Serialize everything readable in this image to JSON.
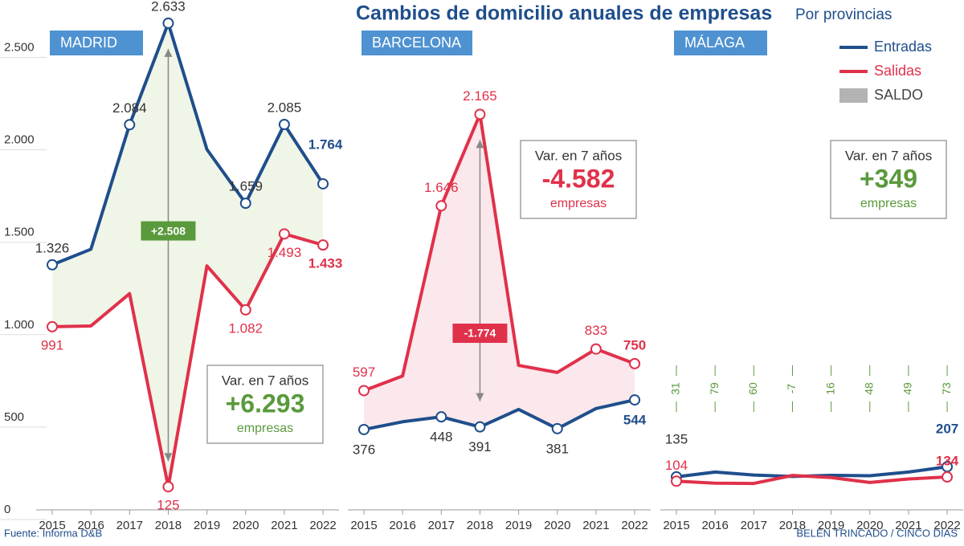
{
  "title": "Cambios de domicilio anuales de empresas",
  "subtitle": "Por provincias",
  "legend": [
    {
      "name": "Entradas",
      "color": "#1f4e8c"
    },
    {
      "name": "Salidas",
      "color": "#e0314b"
    },
    {
      "name": "SALDO",
      "color": "#b3b3b3"
    }
  ],
  "source": "Fuente: Informa D&B",
  "credit": "BELÉN TRINCADO / CINCO DÍAS",
  "chart_data": [
    {
      "type": "line",
      "panel": "MADRID",
      "categories": [
        "2015",
        "2016",
        "2017",
        "2018",
        "2019",
        "2020",
        "2021",
        "2022"
      ],
      "ylim": [
        0,
        2650
      ],
      "yticks": [
        0,
        500,
        {
          "value": 1000,
          "label": "1.000"
        },
        {
          "value": 1500,
          "label": "1.500"
        },
        {
          "value": 2000,
          "label": "2.000"
        },
        {
          "value": 2500,
          "label": "2.500"
        }
      ],
      "area_color": "#eef5e4",
      "series": [
        {
          "color": "#1f4e8c",
          "values": [
            1326,
            1410,
            2084,
            2633,
            1950,
            1659,
            2085,
            1764
          ],
          "value_labels": [
            "1.326",
            null,
            "2.084",
            "2.633",
            null,
            "1.659",
            "2.085",
            "1.764"
          ]
        },
        {
          "color": "#e0314b",
          "values": [
            991,
            995,
            1170,
            125,
            1320,
            1082,
            1493,
            1433
          ],
          "value_labels": [
            "991",
            null,
            null,
            "125",
            null,
            "1.082",
            "1.493",
            "1.433"
          ]
        }
      ],
      "saldo_label": "+2.508",
      "saldo_color": "#5a9a3c",
      "variation": {
        "label": "Var. en 7 años",
        "value": "+6.293",
        "unit": "empresas",
        "color": "#5a9a3c"
      }
    },
    {
      "type": "line",
      "panel": "BARCELONA",
      "categories": [
        "2015",
        "2016",
        "2017",
        "2018",
        "2019",
        "2020",
        "2021",
        "2022"
      ],
      "ylim": [
        -80,
        2700
      ],
      "area_color": "#fbe6ea",
      "series": [
        {
          "color": "#1f4e8c",
          "values": [
            376,
            420,
            448,
            391,
            490,
            381,
            495,
            544
          ],
          "value_labels": [
            "376",
            null,
            "448",
            "391",
            null,
            "381",
            null,
            "544"
          ]
        },
        {
          "color": "#e0314b",
          "values": [
            597,
            680,
            1646,
            2165,
            740,
            700,
            833,
            750
          ],
          "value_labels": [
            "597",
            null,
            "1.646",
            "2.165",
            null,
            null,
            "833",
            "750"
          ]
        }
      ],
      "saldo_label": "-1.774",
      "saldo_color": "#e0314b",
      "variation": {
        "label": "Var. en 7 años",
        "value": "-4.582",
        "unit": "empresas",
        "color": "#e0314b"
      }
    },
    {
      "type": "line",
      "panel": "MÁLAGA",
      "categories": [
        "2015",
        "2016",
        "2017",
        "2018",
        "2019",
        "2020",
        "2021",
        "2022"
      ],
      "ylim": [
        -100,
        3385
      ],
      "series": [
        {
          "color": "#1f4e8c",
          "values": [
            135,
            169,
            148,
            138,
            146,
            143,
            169,
            207
          ],
          "value_labels": [
            "135",
            null,
            null,
            null,
            null,
            null,
            null,
            "207"
          ]
        },
        {
          "color": "#e0314b",
          "values": [
            104,
            90,
            88,
            145,
            130,
            95,
            120,
            134
          ],
          "value_labels": [
            "104",
            null,
            null,
            null,
            null,
            null,
            null,
            "134"
          ]
        }
      ],
      "saldo_values": [
        31,
        79,
        60,
        -7,
        16,
        48,
        49,
        73
      ],
      "saldo_color": "#5a9a3c",
      "variation": {
        "label": "Var. en 7 años",
        "value": "+349",
        "unit": "empresas",
        "color": "#5a9a3c"
      }
    }
  ]
}
